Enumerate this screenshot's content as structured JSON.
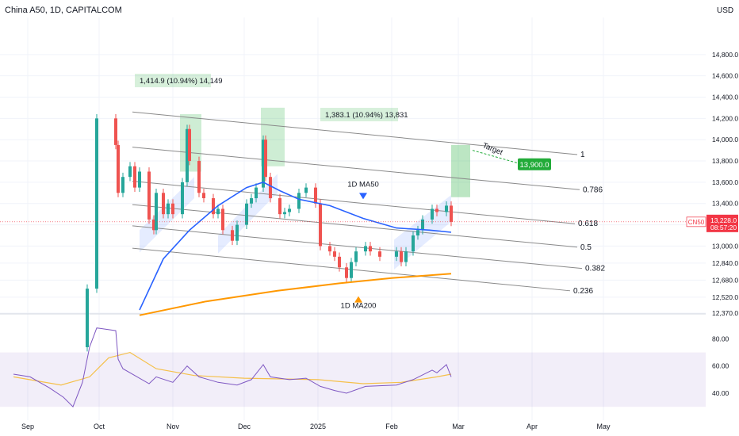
{
  "header": {
    "title": "China A50, 1D, CAPITALCOM"
  },
  "colors": {
    "up": "#26a69a",
    "down": "#ef5350",
    "ma50": "#2962ff",
    "ma200": "#ff9800",
    "channel": "#8a8a8a",
    "rsi": "#7e57c2",
    "rsi_ma": "#f5c04a",
    "price_tag": "#f23645",
    "target": "#22ab39"
  },
  "chart_data": {
    "type": "candlestick",
    "title": "China A50, 1D, CAPITALCOM",
    "currency": "USD",
    "symbol": "CN50",
    "last_price": "13,228.0",
    "countdown": "08:57:20",
    "ylim": [
      12370,
      14970
    ],
    "y_ticks": [
      12370,
      12520,
      12680,
      12840,
      13000,
      13200,
      13400,
      13600,
      13800,
      14000,
      14200,
      14400,
      14600,
      14800
    ],
    "y_tick_labels": [
      "12,370.0",
      "12,520.0",
      "12,680.0",
      "12,840.0",
      "13,000.0",
      "13,200.0",
      "13,400.0",
      "13,600.0",
      "13,800.0",
      "14,000.0",
      "14,200.0",
      "14,400.0",
      "14,600.0",
      "14,800.0"
    ],
    "x_ticks": [
      {
        "label": "Sep",
        "date": "2024-09-01"
      },
      {
        "label": "Oct",
        "date": "2024-10-01"
      },
      {
        "label": "Nov",
        "date": "2024-11-01"
      },
      {
        "label": "Dec",
        "date": "2024-12-01"
      },
      {
        "label": "2025",
        "date": "2025-01-01"
      },
      {
        "label": "Feb",
        "date": "2025-02-01"
      },
      {
        "label": "Mar",
        "date": "2025-03-01"
      },
      {
        "label": "Apr",
        "date": "2025-04-01"
      },
      {
        "label": "May",
        "date": "2025-05-01"
      }
    ],
    "close_path": [
      [
        "2024-09-24",
        12050
      ],
      [
        "2024-09-26",
        12600
      ],
      [
        "2024-09-30",
        14200
      ],
      [
        "2024-10-08",
        13950
      ],
      [
        "2024-10-09",
        13500
      ],
      [
        "2024-10-11",
        13650
      ],
      [
        "2024-10-14",
        13750
      ],
      [
        "2024-10-16",
        13550
      ],
      [
        "2024-10-18",
        13700
      ],
      [
        "2024-10-22",
        13250
      ],
      [
        "2024-10-24",
        13150
      ],
      [
        "2024-10-25",
        13500
      ],
      [
        "2024-10-28",
        13300
      ],
      [
        "2024-10-30",
        13400
      ],
      [
        "2024-11-01",
        13300
      ],
      [
        "2024-11-05",
        13600
      ],
      [
        "2024-11-07",
        14100
      ],
      [
        "2024-11-08",
        13800
      ],
      [
        "2024-11-12",
        13500
      ],
      [
        "2024-11-14",
        13450
      ],
      [
        "2024-11-18",
        13300
      ],
      [
        "2024-11-20",
        13350
      ],
      [
        "2024-11-22",
        13150
      ],
      [
        "2024-11-26",
        13050
      ],
      [
        "2024-11-28",
        13200
      ],
      [
        "2024-12-02",
        13400
      ],
      [
        "2024-12-04",
        13450
      ],
      [
        "2024-12-06",
        13550
      ],
      [
        "2024-12-09",
        14000
      ],
      [
        "2024-12-10",
        13650
      ],
      [
        "2024-12-12",
        13450
      ],
      [
        "2024-12-16",
        13300
      ],
      [
        "2024-12-18",
        13320
      ],
      [
        "2024-12-20",
        13350
      ],
      [
        "2024-12-24",
        13500
      ],
      [
        "2024-12-27",
        13550
      ],
      [
        "2024-12-31",
        13400
      ],
      [
        "2025-01-02",
        13000
      ],
      [
        "2025-01-06",
        12950
      ],
      [
        "2025-01-08",
        12900
      ],
      [
        "2025-01-10",
        12800
      ],
      [
        "2025-01-13",
        12700
      ],
      [
        "2025-01-15",
        12850
      ],
      [
        "2025-01-17",
        12950
      ],
      [
        "2025-01-21",
        13000
      ],
      [
        "2025-01-23",
        12950
      ],
      [
        "2025-01-27",
        12900
      ],
      [
        "2025-02-03",
        12950
      ],
      [
        "2025-02-05",
        12850
      ],
      [
        "2025-02-07",
        12950
      ],
      [
        "2025-02-10",
        13100
      ],
      [
        "2025-02-12",
        13150
      ],
      [
        "2025-02-14",
        13250
      ],
      [
        "2025-02-18",
        13350
      ],
      [
        "2025-02-20",
        13320
      ],
      [
        "2025-02-24",
        13380
      ],
      [
        "2025-02-26",
        13228
      ]
    ],
    "ma50": [
      [
        "2024-10-18",
        12400
      ],
      [
        "2024-10-28",
        12880
      ],
      [
        "2024-11-08",
        13150
      ],
      [
        "2024-11-20",
        13380
      ],
      [
        "2024-12-02",
        13550
      ],
      [
        "2024-12-09",
        13600
      ],
      [
        "2024-12-16",
        13520
      ],
      [
        "2024-12-24",
        13440
      ],
      [
        "2025-01-06",
        13380
      ],
      [
        "2025-01-20",
        13260
      ],
      [
        "2025-02-03",
        13170
      ],
      [
        "2025-02-17",
        13150
      ],
      [
        "2025-02-26",
        13130
      ]
    ],
    "ma200": [
      [
        "2024-10-18",
        12350
      ],
      [
        "2024-11-15",
        12480
      ],
      [
        "2024-12-15",
        12580
      ],
      [
        "2025-01-10",
        12650
      ],
      [
        "2025-02-01",
        12700
      ],
      [
        "2025-02-26",
        12740
      ]
    ],
    "fib_levels": [
      {
        "label": "1",
        "value": 13860,
        "date": "2025-04-20"
      },
      {
        "label": "0.786",
        "value": 13530,
        "date": "2025-04-21"
      },
      {
        "label": "0.618",
        "value": 13210,
        "date": "2025-04-19"
      },
      {
        "label": "0.5",
        "value": 12990,
        "date": "2025-04-20"
      },
      {
        "label": "0.382",
        "value": 12790,
        "date": "2025-04-22"
      },
      {
        "label": "0.236",
        "value": 12580,
        "date": "2025-04-17"
      }
    ],
    "annotations": [
      {
        "name": "measure-label-1",
        "text": "1,414.9 (10.94%) 14,149",
        "date": "2024-10-18",
        "value": 14530
      },
      {
        "name": "measure-label-2",
        "text": "1,383.1 (10.94%) 13,831",
        "date": "2025-01-04",
        "value": 14210
      },
      {
        "name": "ma50-label",
        "text": "1D MA50",
        "date": "2025-01-20",
        "value": 13560
      },
      {
        "name": "ma200-label",
        "text": "1D MA200",
        "date": "2025-01-18",
        "value": 12420
      },
      {
        "name": "target-label",
        "text": "Target",
        "date": "2025-03-11",
        "value": 13930
      },
      {
        "name": "target-price",
        "text": "13,900.0"
      }
    ],
    "rsi": {
      "ylim": [
        26,
        96
      ],
      "y_ticks": [
        40,
        60,
        80
      ],
      "y_tick_labels": [
        "40.00",
        "60.00",
        "80.00"
      ],
      "band": [
        30,
        70
      ],
      "values": [
        [
          "2024-08-26",
          54
        ],
        [
          "2024-09-02",
          52
        ],
        [
          "2024-09-06",
          48
        ],
        [
          "2024-09-10",
          44
        ],
        [
          "2024-09-16",
          37
        ],
        [
          "2024-09-20",
          30
        ],
        [
          "2024-09-24",
          48
        ],
        [
          "2024-09-27",
          74
        ],
        [
          "2024-09-30",
          88
        ],
        [
          "2024-10-08",
          86
        ],
        [
          "2024-10-09",
          65
        ],
        [
          "2024-10-11",
          58
        ],
        [
          "2024-10-16",
          53
        ],
        [
          "2024-10-22",
          47
        ],
        [
          "2024-10-25",
          52
        ],
        [
          "2024-11-01",
          48
        ],
        [
          "2024-11-07",
          60
        ],
        [
          "2024-11-12",
          52
        ],
        [
          "2024-11-20",
          48
        ],
        [
          "2024-11-28",
          46
        ],
        [
          "2024-12-04",
          50
        ],
        [
          "2024-12-09",
          61
        ],
        [
          "2024-12-12",
          52
        ],
        [
          "2024-12-20",
          50
        ],
        [
          "2024-12-27",
          51
        ],
        [
          "2025-01-02",
          45
        ],
        [
          "2025-01-08",
          42
        ],
        [
          "2025-01-13",
          40
        ],
        [
          "2025-01-21",
          45
        ],
        [
          "2025-02-03",
          46
        ],
        [
          "2025-02-10",
          50
        ],
        [
          "2025-02-18",
          57
        ],
        [
          "2025-02-20",
          55
        ],
        [
          "2025-02-24",
          61
        ],
        [
          "2025-02-26",
          52
        ]
      ],
      "ma": [
        [
          "2024-08-26",
          52
        ],
        [
          "2024-09-15",
          46
        ],
        [
          "2024-09-27",
          52
        ],
        [
          "2024-10-05",
          66
        ],
        [
          "2024-10-14",
          70
        ],
        [
          "2024-10-25",
          58
        ],
        [
          "2024-11-10",
          53
        ],
        [
          "2024-12-01",
          51
        ],
        [
          "2025-01-01",
          50
        ],
        [
          "2025-01-20",
          47
        ],
        [
          "2025-02-05",
          48
        ],
        [
          "2025-02-20",
          52
        ],
        [
          "2025-02-26",
          54
        ]
      ]
    }
  }
}
